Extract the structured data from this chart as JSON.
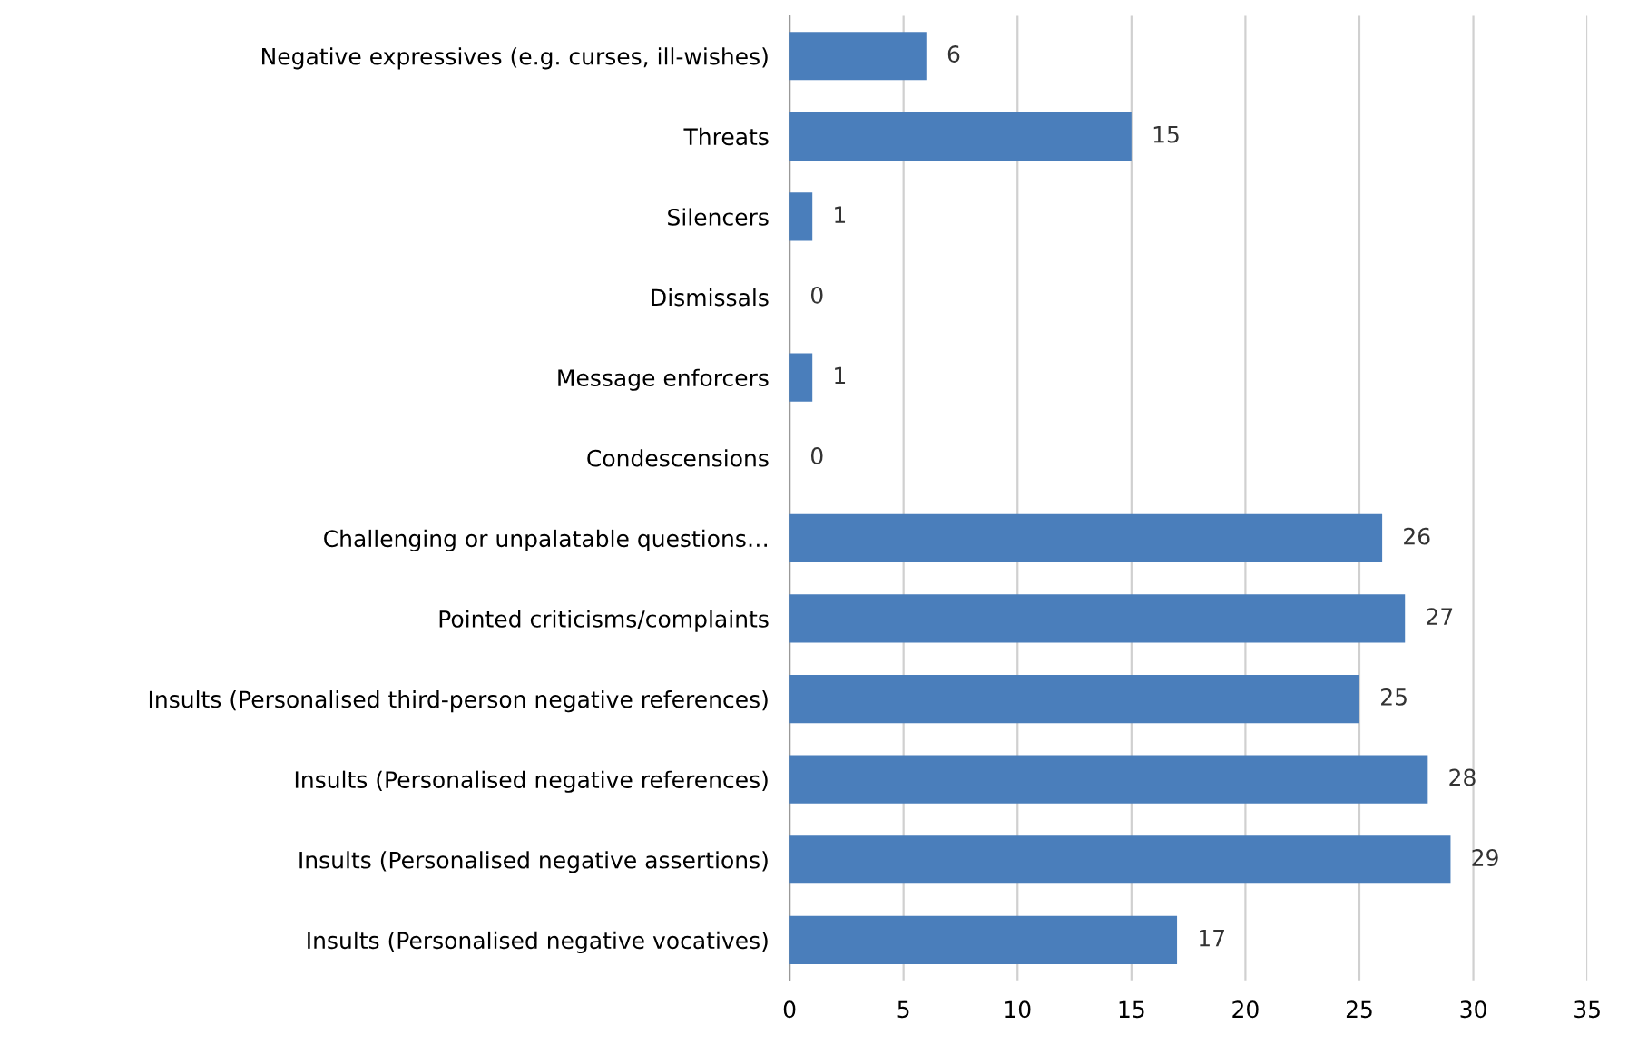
{
  "chart_data": {
    "type": "bar",
    "orientation": "horizontal",
    "categories": [
      "Negative expressives (e.g. curses, ill-wishes)",
      "Threats",
      "Silencers",
      "Dismissals",
      "Message enforcers",
      "Condescensions",
      "Challenging or unpalatable questions…",
      "Pointed criticisms/complaints",
      "Insults (Personalised third-person negative references)",
      "Insults (Personalised negative references)",
      "Insults (Personalised negative assertions)",
      "Insults (Personalised negative vocatives)"
    ],
    "values": [
      6,
      15,
      1,
      0,
      1,
      0,
      26,
      27,
      25,
      28,
      29,
      17
    ],
    "color": "#4a7ebb",
    "xlim": [
      0,
      35
    ],
    "xticks": [
      0,
      5,
      10,
      15,
      20,
      25,
      30,
      35
    ],
    "grid": "x",
    "data_labels": true,
    "legend": false
  }
}
